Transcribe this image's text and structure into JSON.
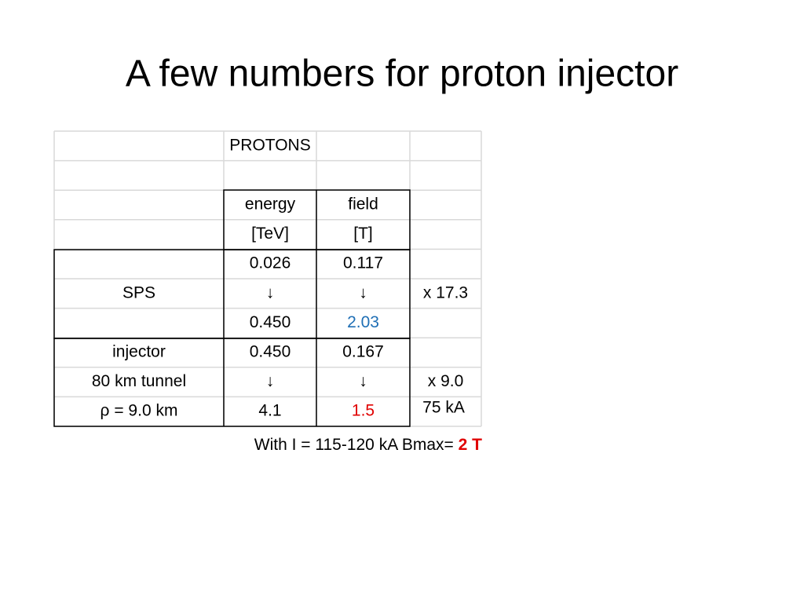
{
  "title": "A few numbers for proton injector",
  "table": {
    "rows": [
      [
        null,
        "PROTONS",
        null,
        null
      ],
      [
        null,
        null,
        null,
        null
      ],
      [
        null,
        "energy",
        "field",
        null
      ],
      [
        null,
        "[TeV]",
        "[T]",
        null
      ],
      [
        null,
        "0.026",
        "0.117",
        null
      ],
      [
        "SPS",
        "↓",
        "↓",
        "x 17.3"
      ],
      [
        null,
        "0.450",
        "2.03",
        null
      ],
      [
        "injector",
        "0.450",
        "0.167",
        null
      ],
      [
        "80 km tunnel",
        "↓",
        "↓",
        "x 9.0"
      ],
      [
        "ρ = 9.0 km",
        "4.1",
        "1.5",
        "75 kA"
      ]
    ]
  },
  "note": {
    "text": "With I = 115-120 kA Bmax= ",
    "emphasis": "2 T"
  }
}
